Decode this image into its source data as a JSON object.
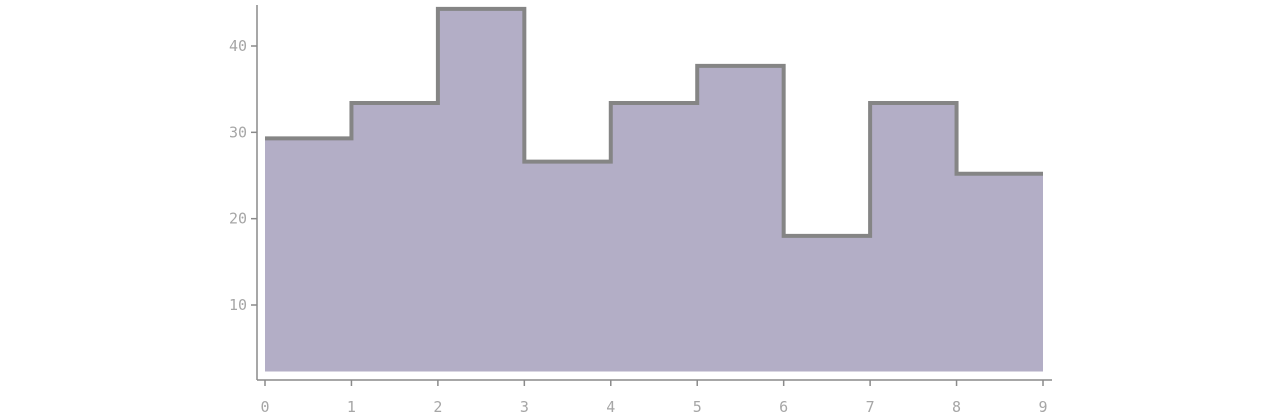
{
  "chart_data": {
    "type": "area",
    "title": "",
    "xlabel": "",
    "ylabel": "",
    "step": "post",
    "x": [
      0,
      1,
      2,
      3,
      4,
      5,
      6,
      7,
      8,
      9
    ],
    "series": [
      {
        "values": [
          29.3,
          33.4,
          44.3,
          26.6,
          33.4,
          37.7,
          18,
          33.4,
          25.2,
          25.2
        ]
      }
    ],
    "baseline": 2.3,
    "xlim": [
      0,
      9
    ],
    "ylim": [
      0,
      45
    ],
    "x_ticks": [
      "0",
      "1",
      "2",
      "3",
      "4",
      "5",
      "6",
      "7",
      "8",
      "9"
    ],
    "y_ticks": [
      "10",
      "20",
      "30",
      "40"
    ],
    "y_tick_values": [
      10,
      20,
      30,
      40
    ],
    "grid": false,
    "legend": "none",
    "colors": {
      "fill": "#b3aec6",
      "stroke": "#858585",
      "axis": "#8a8a8a",
      "tick_text": "#a6a6a6"
    }
  }
}
